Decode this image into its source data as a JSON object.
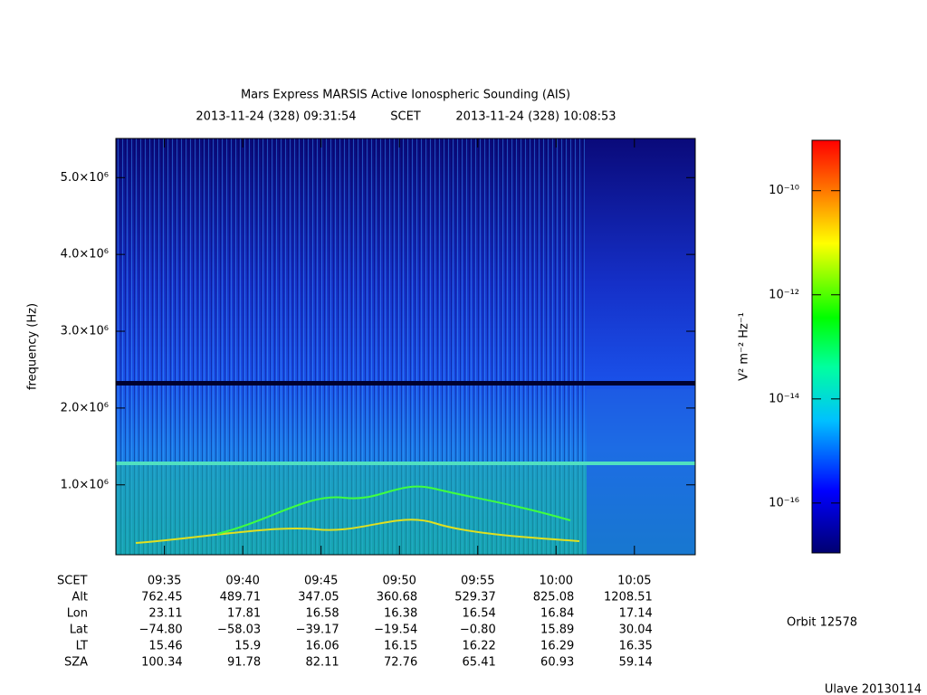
{
  "chart_data": {
    "type": "spectrogram",
    "title": "Mars Express MARSIS Active Ionospheric Sounding (AIS)",
    "subtitle_start": "2013-11-24 (328) 09:31:54",
    "subtitle_mid": "SCET",
    "subtitle_end": "2013-11-24 (328) 10:08:53",
    "ylabel": "frequency (Hz)",
    "xlabel": "SCET",
    "xlim": [
      "09:31:54",
      "10:08:53"
    ],
    "xticks": [
      "09:35",
      "09:40",
      "09:45",
      "09:50",
      "09:55",
      "10:00",
      "10:05"
    ],
    "ylim": [
      90000,
      5510000
    ],
    "yticks": [
      {
        "value": 1000000,
        "label": "1.0×10⁶"
      },
      {
        "value": 2000000,
        "label": "2.0×10⁶"
      },
      {
        "value": 3000000,
        "label": "3.0×10⁶"
      },
      {
        "value": 4000000,
        "label": "4.0×10⁶"
      },
      {
        "value": 5000000,
        "label": "5.0×10⁶"
      }
    ],
    "colorbar": {
      "label": "V² m⁻² Hz⁻¹",
      "log": true,
      "clim": [
        1.1e-17,
        9.3e-10
      ],
      "ticks": [
        {
          "value": 1e-16,
          "label": "10⁻¹⁶"
        },
        {
          "value": 1e-14,
          "label": "10⁻¹⁴"
        },
        {
          "value": 1e-12,
          "label": "10⁻¹²"
        },
        {
          "value": 1e-10,
          "label": "10⁻¹⁰"
        }
      ]
    },
    "ephemeris": [
      {
        "label": "Alt",
        "values": [
          762.45,
          489.71,
          347.05,
          360.68,
          529.37,
          825.08,
          1208.51
        ]
      },
      {
        "label": "Lon",
        "values": [
          23.11,
          17.81,
          16.58,
          16.38,
          16.54,
          16.84,
          17.14
        ]
      },
      {
        "label": "Lat",
        "values": [
          -74.8,
          -58.03,
          -39.17,
          -19.54,
          -0.8,
          15.89,
          30.04
        ],
        "value_labels": [
          "−74.80",
          "−58.03",
          "−39.17",
          "−19.54",
          "−0.80",
          "15.89",
          "30.04"
        ]
      },
      {
        "label": "LT",
        "values": [
          15.46,
          15.9,
          16.06,
          16.15,
          16.22,
          16.29,
          16.35
        ]
      },
      {
        "label": "SZA",
        "values": [
          100.34,
          91.78,
          82.11,
          72.76,
          65.41,
          60.93,
          59.14
        ]
      }
    ],
    "orbit": "Orbit 12578",
    "footer": "Ulave 20130114"
  }
}
